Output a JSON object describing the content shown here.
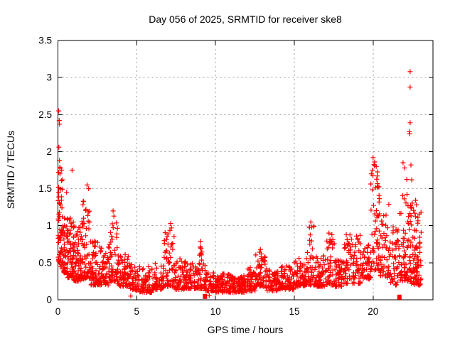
{
  "figure": {
    "background": "#ffffff"
  },
  "chart_data": {
    "type": "scatter",
    "title": "Day 056 of 2025, SRMTID for receiver ske8",
    "xlabel": "GPS time / hours",
    "ylabel": "SRMTID / TECUs",
    "xlim": [
      0,
      23.8
    ],
    "ylim": [
      0,
      3.5
    ],
    "x_ticks": [
      0,
      5,
      10,
      15,
      20
    ],
    "x_tick_labels": [
      "0",
      "5",
      "10",
      "15",
      "20"
    ],
    "y_ticks": [
      0,
      0.5,
      1,
      1.5,
      2,
      2.5,
      3,
      3.5
    ],
    "y_tick_labels": [
      "0",
      "0.5",
      "1",
      "1.5",
      "2",
      "2.5",
      "3",
      "3.5"
    ],
    "grid": true,
    "grid_style": "dashed",
    "legend": "none",
    "series_name": "SRMTID",
    "marker": {
      "shape": "plus",
      "color": "#ff0000",
      "size": 7
    },
    "seed": 20250056,
    "point_bins_format": [
      "hour_start",
      "hour_end",
      "count",
      "y_min",
      "y_max",
      "skew_power"
    ],
    "point_bins": [
      [
        0.0,
        0.3,
        55,
        0.45,
        1.8,
        1.6
      ],
      [
        0.3,
        0.6,
        50,
        0.35,
        1.25,
        1.8
      ],
      [
        0.6,
        1.0,
        60,
        0.3,
        1.15,
        1.8
      ],
      [
        1.0,
        1.5,
        65,
        0.25,
        1.0,
        1.9
      ],
      [
        1.5,
        2.1,
        70,
        0.28,
        1.35,
        2.0
      ],
      [
        2.1,
        2.6,
        55,
        0.2,
        0.8,
        1.8
      ],
      [
        2.6,
        3.2,
        55,
        0.2,
        0.72,
        1.8
      ],
      [
        3.2,
        3.8,
        60,
        0.25,
        1.05,
        1.9
      ],
      [
        3.8,
        4.5,
        60,
        0.18,
        0.62,
        1.8
      ],
      [
        4.5,
        5.2,
        55,
        0.13,
        0.5,
        1.7
      ],
      [
        5.2,
        6.0,
        60,
        0.1,
        0.45,
        1.7
      ],
      [
        6.0,
        6.7,
        55,
        0.14,
        0.55,
        1.8
      ],
      [
        6.7,
        7.4,
        60,
        0.18,
        0.95,
        2.2
      ],
      [
        7.4,
        8.1,
        55,
        0.14,
        0.58,
        1.9
      ],
      [
        8.1,
        8.8,
        55,
        0.15,
        0.5,
        1.8
      ],
      [
        8.8,
        9.35,
        50,
        0.15,
        0.72,
        2.2
      ],
      [
        9.35,
        10.0,
        50,
        0.12,
        0.38,
        1.6
      ],
      [
        10.0,
        11.0,
        85,
        0.1,
        0.35,
        1.5
      ],
      [
        11.0,
        12.0,
        85,
        0.1,
        0.33,
        1.5
      ],
      [
        12.0,
        12.55,
        50,
        0.12,
        0.45,
        1.7
      ],
      [
        12.55,
        13.2,
        55,
        0.18,
        0.66,
        1.7
      ],
      [
        13.2,
        14.0,
        65,
        0.12,
        0.42,
        1.6
      ],
      [
        14.0,
        15.0,
        80,
        0.14,
        0.46,
        1.6
      ],
      [
        15.0,
        15.75,
        60,
        0.18,
        0.56,
        1.7
      ],
      [
        15.75,
        16.3,
        50,
        0.2,
        1.02,
        2.2
      ],
      [
        16.3,
        17.0,
        55,
        0.18,
        0.6,
        1.8
      ],
      [
        17.0,
        17.55,
        45,
        0.2,
        0.88,
        2.1
      ],
      [
        17.55,
        18.1,
        45,
        0.18,
        0.55,
        1.8
      ],
      [
        18.1,
        18.65,
        45,
        0.22,
        0.88,
        2.0
      ],
      [
        18.65,
        19.3,
        50,
        0.22,
        0.88,
        2.0
      ],
      [
        19.3,
        19.85,
        45,
        0.28,
        0.8,
        1.7
      ],
      [
        19.85,
        20.45,
        60,
        0.4,
        1.9,
        1.8
      ],
      [
        20.45,
        21.05,
        50,
        0.3,
        1.3,
        1.9
      ],
      [
        21.05,
        21.65,
        45,
        0.2,
        1.0,
        1.9
      ],
      [
        21.65,
        22.25,
        60,
        0.25,
        1.85,
        2.0
      ],
      [
        22.25,
        22.75,
        60,
        0.2,
        1.38,
        1.8
      ],
      [
        22.75,
        23.05,
        40,
        0.2,
        1.3,
        1.8
      ]
    ],
    "outlier_points": [
      [
        0.05,
        2.55
      ],
      [
        0.08,
        2.42
      ],
      [
        0.1,
        2.37
      ],
      [
        0.06,
        2.06
      ],
      [
        0.1,
        1.88
      ],
      [
        0.04,
        1.72
      ],
      [
        0.13,
        1.7
      ],
      [
        0.3,
        1.62
      ],
      [
        0.55,
        1.45
      ],
      [
        0.9,
        1.75
      ],
      [
        1.85,
        1.55
      ],
      [
        1.95,
        1.5
      ],
      [
        3.5,
        1.2
      ],
      [
        3.55,
        1.13
      ],
      [
        7.15,
        1.03
      ],
      [
        7.2,
        0.97
      ],
      [
        9.05,
        0.79
      ],
      [
        9.05,
        0.7
      ],
      [
        9.05,
        0.62
      ],
      [
        12.85,
        0.68
      ],
      [
        12.9,
        0.62
      ],
      [
        16.05,
        1.05
      ],
      [
        16.1,
        0.98
      ],
      [
        17.2,
        0.9
      ],
      [
        18.3,
        0.88
      ],
      [
        18.95,
        0.86
      ],
      [
        20.0,
        1.92
      ],
      [
        20.1,
        1.86
      ],
      [
        20.2,
        1.8
      ],
      [
        19.95,
        1.75
      ],
      [
        21.9,
        1.85
      ],
      [
        22.0,
        1.78
      ],
      [
        22.35,
        3.08
      ],
      [
        22.35,
        2.87
      ],
      [
        22.35,
        2.39
      ],
      [
        22.3,
        2.27
      ],
      [
        22.33,
        2.24
      ],
      [
        22.4,
        1.82
      ],
      [
        22.45,
        1.62
      ],
      [
        4.62,
        0.05
      ],
      [
        9.6,
        0.06
      ]
    ],
    "square_markers": [
      [
        9.33,
        0.05
      ],
      [
        21.67,
        0.04
      ]
    ]
  },
  "style": {
    "axis_color": "#000000",
    "grid_color": "#9a9a9a",
    "text_color": "#000000",
    "marker_color": "#ff0000"
  }
}
